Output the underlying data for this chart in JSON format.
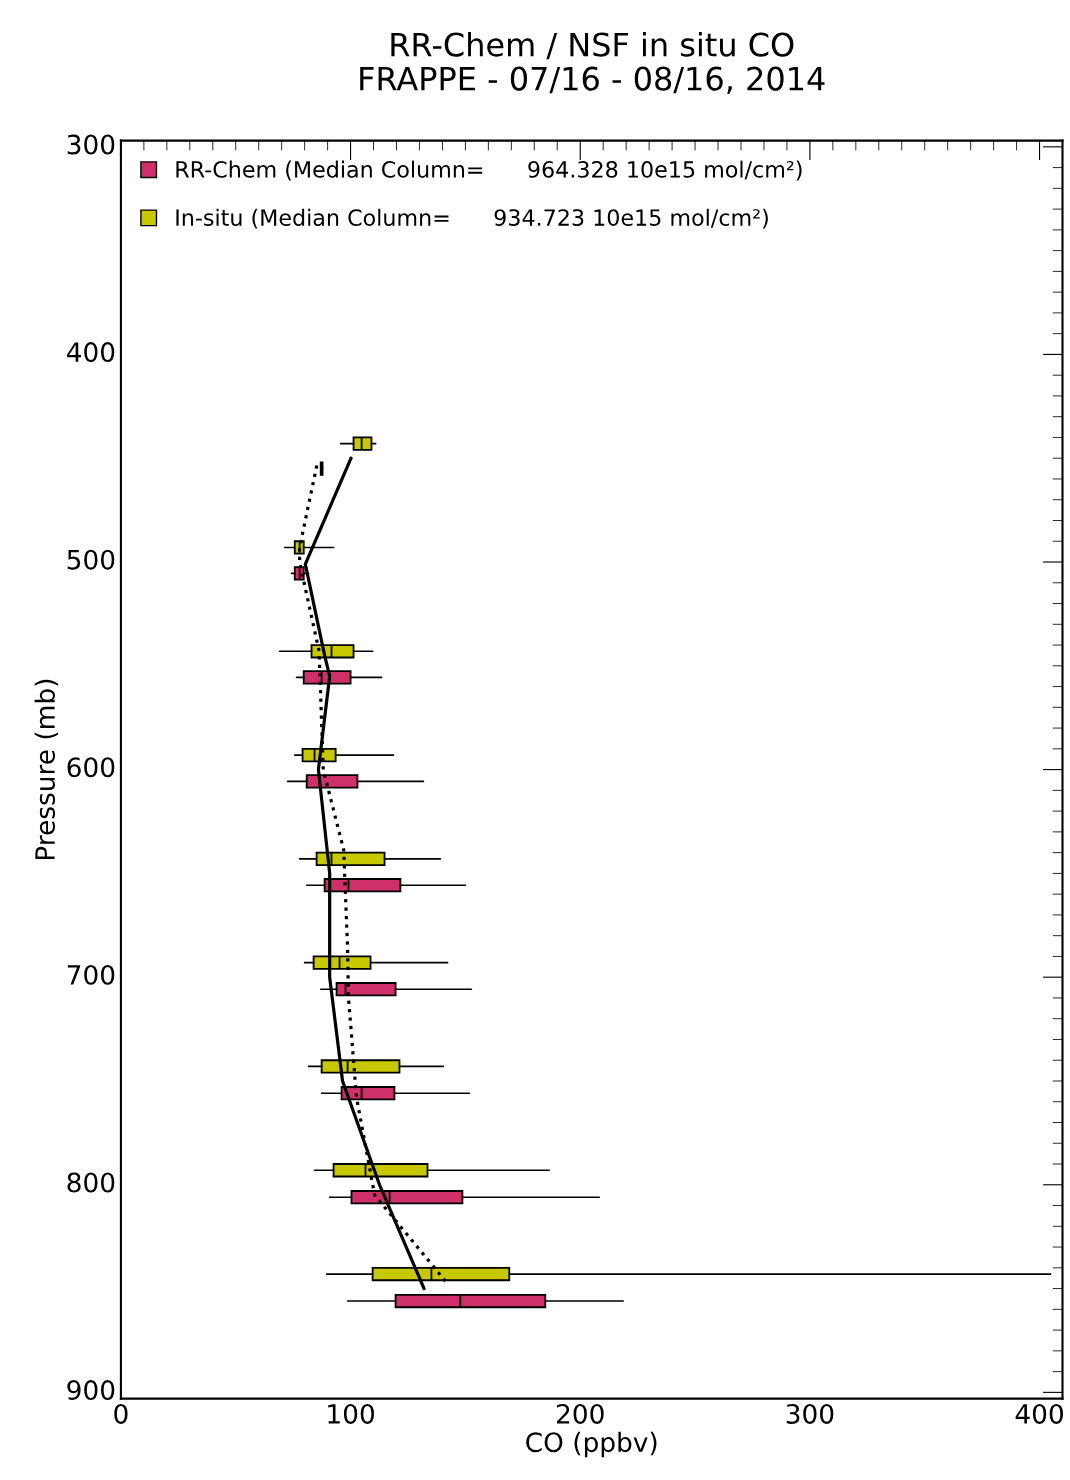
{
  "chart_data": {
    "type": "box",
    "orientation": "horizontal",
    "title": "RR-Chem / NSF in situ CO",
    "subtitle": "FRAPPE - 07/16 - 08/16, 2014",
    "xlabel": "CO (ppbv)",
    "ylabel": "Pressure (mb)",
    "xlim": [
      0,
      410
    ],
    "ylim": [
      903,
      297
    ],
    "xticks": [
      0,
      100,
      200,
      300,
      400
    ],
    "yticks": [
      300,
      400,
      500,
      600,
      700,
      800,
      900
    ],
    "legend": "top left",
    "series": [
      {
        "name": "RR-Chem (Median Column=      964.328 10e15 mol/cm²)",
        "color": "#d0306a",
        "x": [
          455,
          505.5,
          555.6,
          605.7,
          655.7,
          705.8,
          755.9,
          806,
          856
        ],
        "boxes": [
          {
            "low": 87,
            "q1": 87,
            "median": 87.4,
            "q3": 87.8,
            "high": 87.8
          },
          {
            "low": 74.3,
            "q1": 75.7,
            "median": 77.8,
            "q3": 79.6,
            "high": 81.7
          },
          {
            "low": 76.5,
            "q1": 79.6,
            "median": 87.4,
            "q3": 100,
            "high": 113.5
          },
          {
            "low": 72.6,
            "q1": 80.9,
            "median": 86.5,
            "q3": 103,
            "high": 131.7
          },
          {
            "low": 80.9,
            "q1": 88.7,
            "median": 99.1,
            "q3": 121.7,
            "high": 150
          },
          {
            "low": 87,
            "q1": 93.9,
            "median": 97.8,
            "q3": 119.6,
            "high": 152.6
          },
          {
            "low": 87.4,
            "q1": 96.1,
            "median": 104.8,
            "q3": 119.1,
            "high": 151.7
          },
          {
            "low": 90.9,
            "q1": 100.4,
            "median": 117,
            "q3": 148.7,
            "high": 208.3
          },
          {
            "low": 98.7,
            "q1": 119.6,
            "median": 147.8,
            "q3": 184.8,
            "high": 218.7
          }
        ]
      },
      {
        "name": "In-situ (Median Column=      934.723 10e15 mol/cm²)",
        "color": "#c8c800",
        "x": [
          443,
          493,
          543,
          593,
          643,
          693,
          743,
          793,
          843
        ],
        "boxes": [
          {
            "low": 95.7,
            "q1": 101.3,
            "median": 104.8,
            "q3": 109.1,
            "high": 110.9
          },
          {
            "low": 71.3,
            "q1": 75.7,
            "median": 77.8,
            "q3": 79.6,
            "high": 92.6
          },
          {
            "low": 69.1,
            "q1": 83,
            "median": 91.7,
            "q3": 101.3,
            "high": 109.6
          },
          {
            "low": 75.7,
            "q1": 79.1,
            "median": 84.3,
            "q3": 93.5,
            "high": 118.7
          },
          {
            "low": 77.8,
            "q1": 85.2,
            "median": 91.7,
            "q3": 114.8,
            "high": 139.1
          },
          {
            "low": 80,
            "q1": 83.9,
            "median": 95.2,
            "q3": 108.7,
            "high": 142.2
          },
          {
            "low": 81.7,
            "q1": 87.4,
            "median": 98.7,
            "q3": 121.3,
            "high": 140.4
          },
          {
            "low": 84.3,
            "q1": 92.6,
            "median": 106.5,
            "q3": 133.5,
            "high": 186.5
          },
          {
            "low": 89.6,
            "q1": 109.6,
            "median": 135.2,
            "q3": 169.1,
            "high": 404.8
          }
        ]
      },
      {
        "type": "line",
        "color": "#000000",
        "line_style": "dotted",
        "x": [
          453.5,
          493,
          500,
          543,
          600,
          638.6,
          686,
          710,
          758,
          805,
          848
        ],
        "values": [
          85.3,
          77.8,
          77.8,
          86.3,
          88.1,
          97,
          98.7,
          99.1,
          102.6,
          110.5,
          142.5
        ]
      },
      {
        "type": "line",
        "color": "#000000",
        "line_style": "solid",
        "x": [
          450,
          501,
          545,
          555,
          600,
          650,
          700,
          750,
          800,
          850
        ],
        "values": [
          100.2,
          80.3,
          88.7,
          90.9,
          86,
          90.9,
          90.9,
          96.5,
          112.6,
          132
        ]
      }
    ]
  }
}
